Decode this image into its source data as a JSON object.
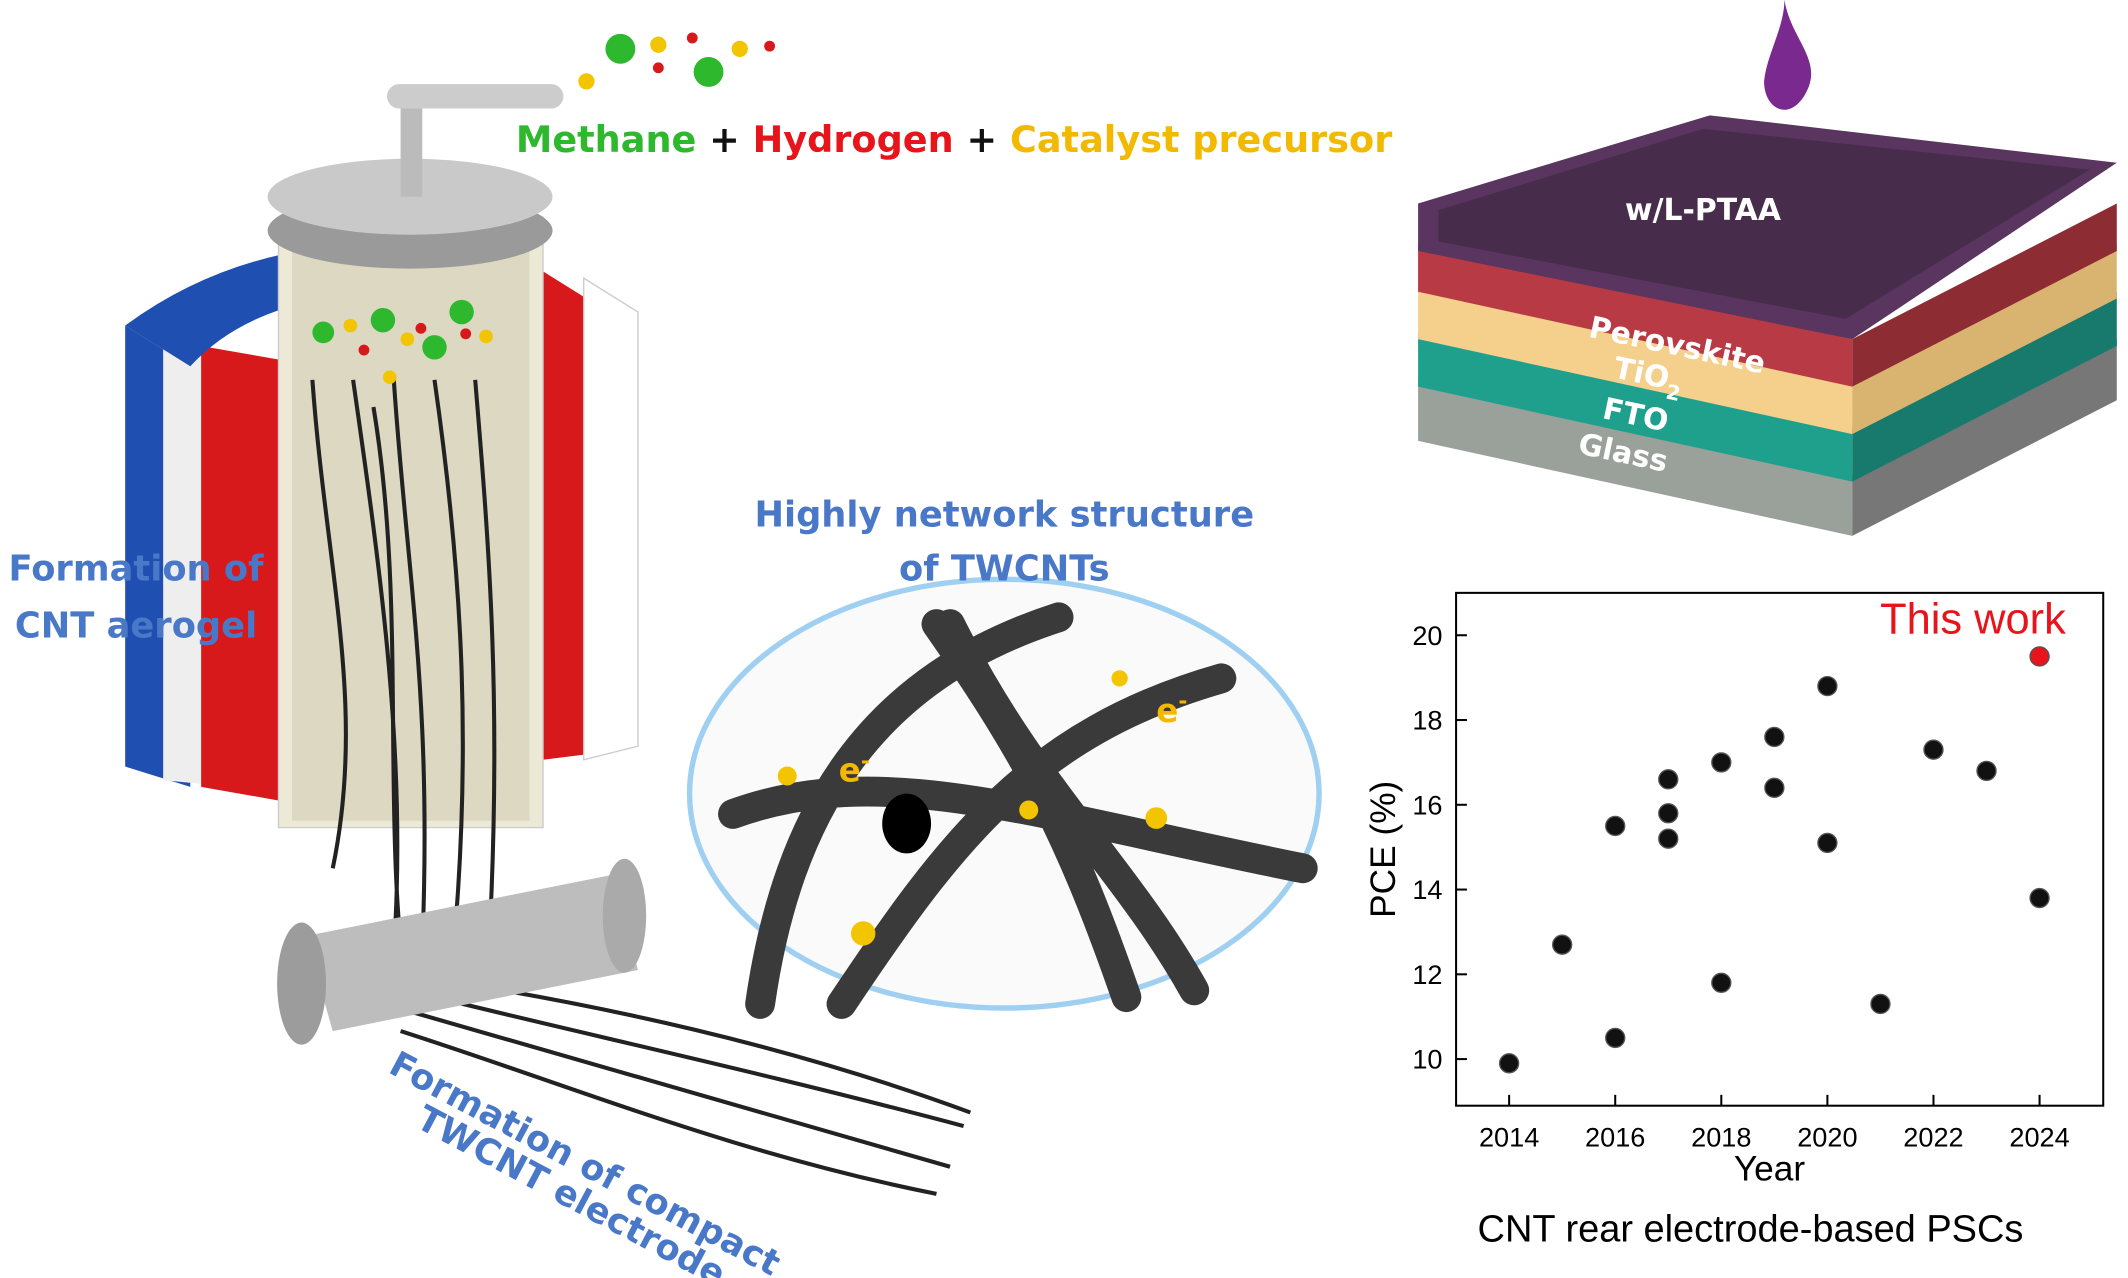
{
  "illustration": {
    "gases": {
      "methane": "Methane",
      "plus_1": "+",
      "hydrogen": "Hydrogen",
      "plus_2": "+",
      "catalyst": "Catalyst precursor"
    },
    "aerogel_label": [
      "Formation of",
      "CNT aerogel"
    ],
    "network_label": [
      "Highly network structure",
      "of TWCNTs"
    ],
    "electrode_label": [
      "Formation of compact",
      "TWCNT electrode"
    ],
    "electron": {
      "base": "e",
      "sup": "-"
    },
    "layers": {
      "ptaa": "w/L-PTAA",
      "perovskite": "Perovskite",
      "tio2": {
        "base": "TiO",
        "sub": "2"
      },
      "fto": "FTO",
      "glass": "Glass"
    }
  },
  "chart_data": {
    "type": "scatter",
    "x_label": "Year",
    "y_label": "PCE (%)",
    "caption": "CNT rear electrode-based PSCs",
    "annotation": "This work",
    "xlim": [
      2013,
      2025.2
    ],
    "ylim": [
      8.9,
      21
    ],
    "xticks": [
      2014,
      2016,
      2018,
      2020,
      2022,
      2024
    ],
    "yticks": [
      10,
      12,
      14,
      16,
      18,
      20
    ],
    "series": [
      {
        "color": "#111111",
        "x": [
          2014,
          2015,
          2016,
          2016,
          2017,
          2017,
          2017,
          2018,
          2018,
          2019,
          2019,
          2020,
          2020,
          2021,
          2022,
          2023,
          2024
        ],
        "values": [
          9.9,
          12.7,
          15.5,
          10.5,
          16.6,
          15.8,
          15.2,
          17.0,
          11.8,
          17.6,
          16.4,
          18.8,
          15.1,
          11.3,
          17.3,
          16.8,
          13.8
        ]
      },
      {
        "color": "#e8141b",
        "x": [
          2024
        ],
        "values": [
          19.5
        ]
      }
    ]
  }
}
